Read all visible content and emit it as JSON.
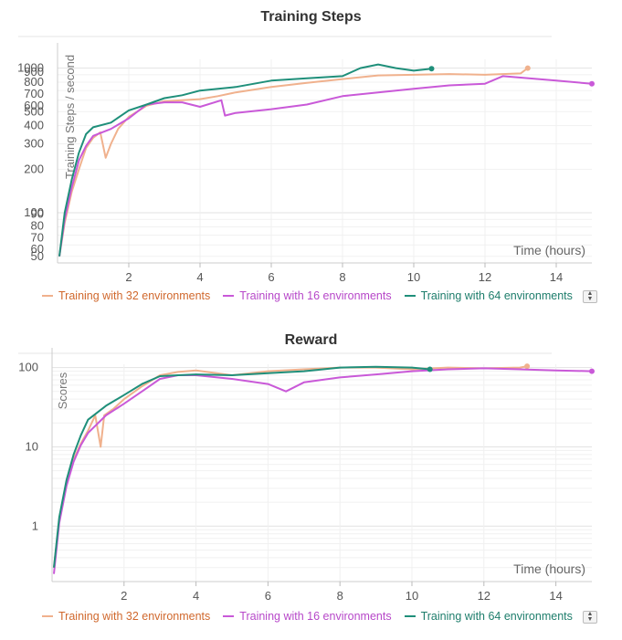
{
  "colors": {
    "env32": "#f0b18d",
    "env16": "#c959d8",
    "env64": "#1f8f7a",
    "env32_text": "#d0682d",
    "env16_text": "#b748c9",
    "env64_text": "#1d7d6b"
  },
  "legend_toggle_icon": "up-down-arrows-icon",
  "chart_data": [
    {
      "type": "line",
      "title": "Training Steps",
      "xlabel": "Time (hours)",
      "ylabel": "Training Steps / second",
      "yscale": "log",
      "xlim": [
        0,
        15
      ],
      "ylim": [
        45,
        1150
      ],
      "x_ticks": [
        2,
        4,
        6,
        8,
        10,
        12,
        14
      ],
      "y_ticks": [
        50,
        60,
        70,
        80,
        90,
        100,
        200,
        300,
        400,
        500,
        600,
        700,
        800,
        900,
        1000
      ],
      "y_tick_labels": [
        "50",
        "60",
        "70",
        "80",
        "90",
        "100",
        "200",
        "300",
        "400",
        "500",
        "600",
        "700",
        "800",
        "900",
        "1000"
      ],
      "grid": true,
      "legend_position": "bottom",
      "series": [
        {
          "name": "Training with 32 environments",
          "color": "env32",
          "x": [
            0.05,
            0.2,
            0.4,
            0.6,
            0.8,
            1.0,
            1.2,
            1.35,
            1.5,
            1.7,
            2.0,
            2.5,
            3.0,
            3.5,
            4.0,
            4.5,
            5.0,
            6.0,
            7.0,
            8.0,
            9.0,
            10.0,
            11.0,
            12.0,
            13.0,
            13.2
          ],
          "y": [
            50,
            85,
            140,
            200,
            280,
            330,
            360,
            240,
            300,
            380,
            460,
            550,
            590,
            600,
            610,
            640,
            680,
            740,
            790,
            840,
            890,
            900,
            910,
            900,
            920,
            1000
          ]
        },
        {
          "name": "Training with 16 environments",
          "color": "env16",
          "x": [
            0.05,
            0.2,
            0.4,
            0.6,
            0.8,
            1.0,
            1.5,
            2.0,
            2.5,
            3.0,
            3.5,
            4.0,
            4.6,
            4.7,
            5.0,
            6.0,
            7.0,
            8.0,
            9.0,
            10.0,
            11.0,
            12.0,
            12.5,
            13.0,
            14.0,
            15.0
          ],
          "y": [
            50,
            90,
            150,
            230,
            290,
            340,
            380,
            450,
            560,
            580,
            580,
            540,
            600,
            470,
            490,
            520,
            560,
            640,
            680,
            720,
            760,
            780,
            880,
            860,
            820,
            780
          ]
        },
        {
          "name": "Training with 64 environments",
          "color": "env64",
          "x": [
            0.05,
            0.2,
            0.4,
            0.6,
            0.8,
            1.0,
            1.5,
            2.0,
            2.5,
            3.0,
            3.5,
            4.0,
            5.0,
            6.0,
            7.0,
            8.0,
            8.5,
            9.0,
            9.5,
            10.0,
            10.5
          ],
          "y": [
            50,
            100,
            170,
            260,
            350,
            390,
            420,
            510,
            560,
            620,
            650,
            700,
            740,
            820,
            850,
            880,
            1000,
            1060,
            1000,
            960,
            990
          ]
        }
      ]
    },
    {
      "type": "line",
      "title": "Reward",
      "xlabel": "Time (hours)",
      "ylabel": "Scores",
      "yscale": "log",
      "xlim": [
        0,
        15
      ],
      "ylim": [
        0.2,
        110
      ],
      "x_ticks": [
        2,
        4,
        6,
        8,
        10,
        12,
        14
      ],
      "y_ticks": [
        1,
        10,
        100
      ],
      "y_tick_labels": [
        "1",
        "10",
        "100"
      ],
      "grid": true,
      "legend_position": "bottom",
      "series": [
        {
          "name": "Training with 32 environments",
          "color": "env32",
          "x": [
            0.05,
            0.2,
            0.4,
            0.6,
            0.8,
            1.0,
            1.2,
            1.35,
            1.45,
            1.7,
            2.0,
            2.5,
            3.0,
            3.5,
            4.0,
            5.0,
            6.0,
            7.0,
            8.0,
            9.0,
            10.0,
            11.0,
            12.0,
            13.0,
            13.2
          ],
          "y": [
            0.3,
            1.2,
            3.5,
            7,
            11,
            16,
            25,
            10,
            25,
            30,
            40,
            58,
            80,
            88,
            92,
            80,
            90,
            95,
            100,
            100,
            95,
            100,
            98,
            100,
            104
          ]
        },
        {
          "name": "Training with 16 environments",
          "color": "env16",
          "x": [
            0.05,
            0.2,
            0.4,
            0.6,
            0.8,
            1.0,
            1.5,
            2.0,
            2.5,
            3.0,
            3.5,
            4.0,
            5.0,
            6.0,
            6.5,
            7.0,
            8.0,
            9.0,
            10.0,
            11.0,
            12.0,
            13.0,
            14.0,
            15.0
          ],
          "y": [
            0.25,
            1.1,
            3.2,
            6.5,
            10.5,
            15,
            25,
            35,
            50,
            72,
            80,
            80,
            72,
            62,
            50,
            65,
            75,
            82,
            90,
            95,
            98,
            95,
            92,
            90
          ]
        },
        {
          "name": "Training with 64 environments",
          "color": "env64",
          "x": [
            0.05,
            0.2,
            0.4,
            0.6,
            0.8,
            1.0,
            1.5,
            2.0,
            2.5,
            3.0,
            3.5,
            4.0,
            5.0,
            6.0,
            7.0,
            8.0,
            9.0,
            10.0,
            10.5
          ],
          "y": [
            0.3,
            1.3,
            3.8,
            8,
            14,
            22,
            33,
            45,
            62,
            78,
            80,
            82,
            80,
            85,
            90,
            100,
            102,
            100,
            95
          ]
        }
      ]
    }
  ]
}
